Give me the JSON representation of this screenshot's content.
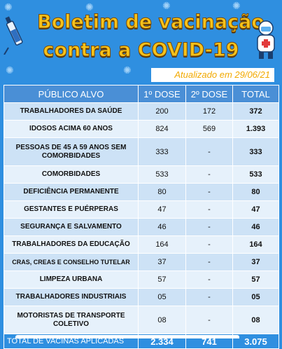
{
  "title": {
    "line1": "Boletim de vacinação",
    "line2": "contra a COVID-19"
  },
  "updated": "Atualizado em  29/06/21",
  "table": {
    "headers": [
      "PÚBLICO ALVO",
      "1º DOSE",
      "2º DOSE",
      "TOTAL"
    ],
    "rows": [
      {
        "group": "TRABALHADORES DA SAÚDE",
        "dose1": "200",
        "dose2": "172",
        "total": "372"
      },
      {
        "group": "IDOSOS ACIMA 60 ANOS",
        "dose1": "824",
        "dose2": "569",
        "total": "1.393"
      },
      {
        "group": "PESSOAS DE 45 A 59 ANOS SEM COMORBIDADES",
        "dose1": "333",
        "dose2": "-",
        "total": "333"
      },
      {
        "group": "COMORBIDADES",
        "dose1": "533",
        "dose2": "-",
        "total": "533"
      },
      {
        "group": "DEFICIÊNCIA PERMANENTE",
        "dose1": "80",
        "dose2": "-",
        "total": "80"
      },
      {
        "group": "GESTANTES E PUÉRPERAS",
        "dose1": "47",
        "dose2": "-",
        "total": "47"
      },
      {
        "group": "SEGURANÇA E SALVAMENTO",
        "dose1": "46",
        "dose2": "-",
        "total": "46"
      },
      {
        "group": "TRABALHADORES DA EDUCAÇÃO",
        "dose1": "164",
        "dose2": "-",
        "total": "164"
      },
      {
        "group": "CRAS, CREAS E CONSELHO TUTELAR",
        "dose1": "37",
        "dose2": "-",
        "total": "37"
      },
      {
        "group": "LIMPEZA URBANA",
        "dose1": "57",
        "dose2": "-",
        "total": "57"
      },
      {
        "group": "TRABALHADORES INDUSTRIAIS",
        "dose1": "05",
        "dose2": "-",
        "total": "05"
      },
      {
        "group": "MOTORISTAS DE TRANSPORTE COLETIVO",
        "dose1": "08",
        "dose2": "-",
        "total": "08"
      }
    ],
    "footer": {
      "label": "TOTAL DE VACINAS APLICADAS",
      "dose1": "2.334",
      "dose2": "741",
      "total": "3.075"
    }
  },
  "colors": {
    "background": "#2f8fe0",
    "title": "#f6c21a",
    "header": "#4a8fd6",
    "row_odd": "#cde2f6",
    "row_even": "#e6f1fb",
    "updated_text": "#f2a900"
  },
  "icons": [
    "syringe-icon",
    "mascot-icon",
    "virus-icon"
  ]
}
